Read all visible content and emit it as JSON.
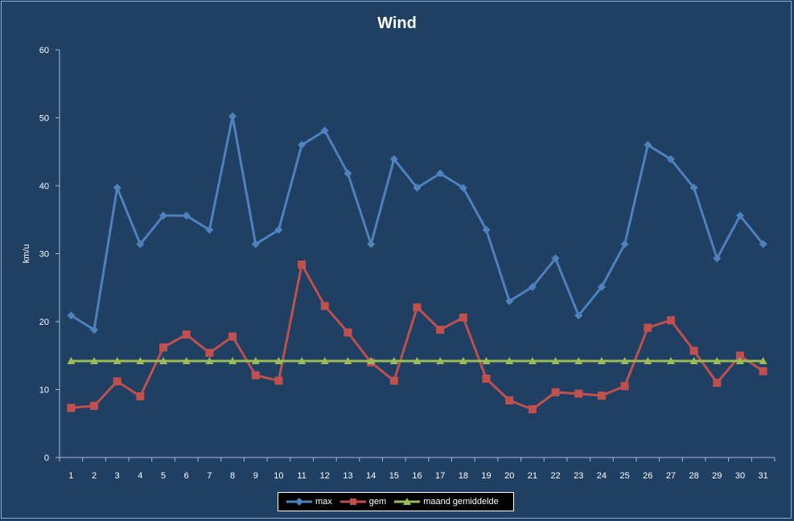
{
  "chart_data": {
    "type": "line",
    "title": "Wind",
    "xlabel": "",
    "ylabel": "km/u",
    "ylim": [
      0,
      60
    ],
    "yticks": [
      0,
      10,
      20,
      30,
      40,
      50,
      60
    ],
    "categories": [
      "1",
      "2",
      "3",
      "4",
      "5",
      "6",
      "7",
      "8",
      "9",
      "10",
      "11",
      "12",
      "13",
      "14",
      "15",
      "16",
      "17",
      "18",
      "19",
      "20",
      "21",
      "22",
      "23",
      "24",
      "25",
      "26",
      "27",
      "28",
      "29",
      "30",
      "31"
    ],
    "grid": false,
    "legend_position": "bottom",
    "series": [
      {
        "name": "max",
        "color": "#4f81bd",
        "marker": "diamond",
        "values": [
          20.9,
          18.8,
          39.7,
          31.4,
          35.6,
          35.6,
          33.5,
          50.2,
          31.4,
          33.5,
          46.0,
          48.1,
          41.8,
          31.4,
          43.9,
          39.7,
          41.8,
          39.7,
          33.5,
          23.0,
          25.1,
          29.3,
          20.9,
          25.1,
          31.4,
          46.0,
          43.9,
          39.7,
          29.3,
          35.6,
          31.4
        ]
      },
      {
        "name": "gem",
        "color": "#c0504d",
        "marker": "square",
        "values": [
          7.3,
          7.6,
          11.2,
          9.0,
          16.2,
          18.1,
          15.4,
          17.8,
          12.1,
          11.3,
          28.4,
          22.3,
          18.4,
          14.0,
          11.3,
          22.1,
          18.8,
          20.6,
          11.6,
          8.4,
          7.1,
          9.6,
          9.4,
          9.1,
          10.5,
          19.1,
          20.2,
          15.7,
          11.0,
          15.0,
          12.7
        ]
      },
      {
        "name": "maand gemiddelde",
        "color": "#9bbb59",
        "marker": "triangle",
        "values": [
          14.2,
          14.2,
          14.2,
          14.2,
          14.2,
          14.2,
          14.2,
          14.2,
          14.2,
          14.2,
          14.2,
          14.2,
          14.2,
          14.2,
          14.2,
          14.2,
          14.2,
          14.2,
          14.2,
          14.2,
          14.2,
          14.2,
          14.2,
          14.2,
          14.2,
          14.2,
          14.2,
          14.2,
          14.2,
          14.2,
          14.2
        ]
      }
    ]
  }
}
